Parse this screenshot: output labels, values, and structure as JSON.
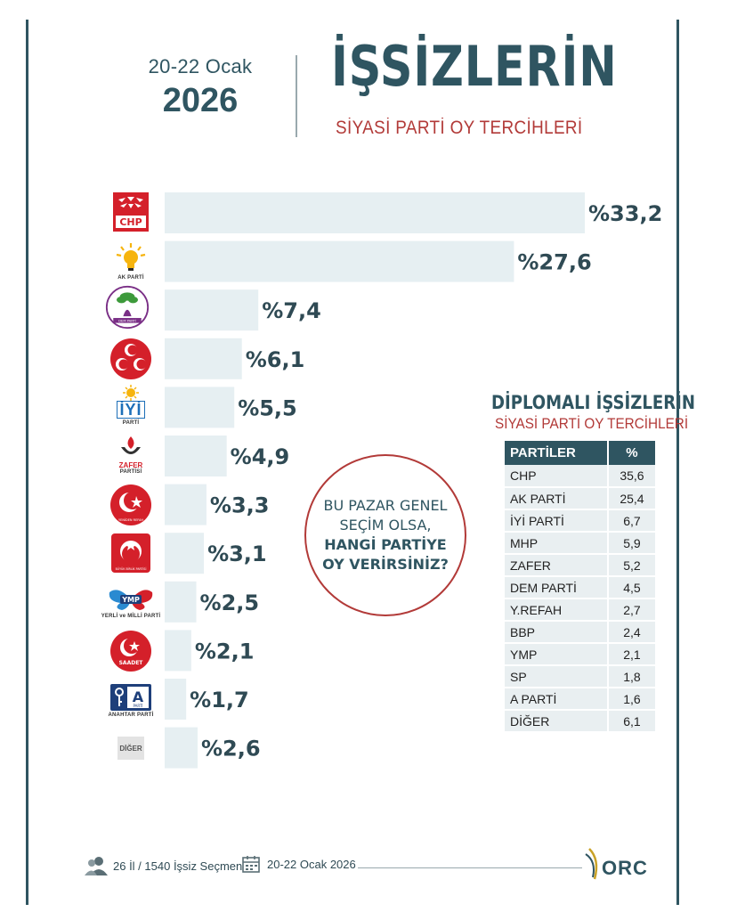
{
  "header": {
    "date_range": "20-22 Ocak",
    "year": "2026",
    "title": "İŞSİZLERİN",
    "subtitle": "SİYASİ PARTİ OY TERCİHLERİ"
  },
  "chart_data": {
    "type": "bar",
    "orientation": "horizontal",
    "title": "İŞSİZLERİN SİYASİ PARTİ OY TERCİHLERİ",
    "value_prefix": "%",
    "categories": [
      "CHP",
      "AK PARTİ",
      "DEM PARTİ",
      "MHP",
      "İYİ PARTİ",
      "ZAFER PARTİSİ",
      "YENİDEN REFAH",
      "BÜYÜK BİRLİK PARTİSİ",
      "YERLİ ve MİLLİ PARTİ",
      "SAADET",
      "ANAHTAR PARTİ",
      "DİĞER"
    ],
    "values": [
      33.2,
      27.6,
      7.4,
      6.1,
      5.5,
      4.9,
      3.3,
      3.1,
      2.5,
      2.1,
      1.7,
      2.6
    ],
    "labels": [
      "%33,2",
      "%27,6",
      "%7,4",
      "%6,1",
      "%5,5",
      "%4,9",
      "%3,3",
      "%3,1",
      "%2,5",
      "%2,1",
      "%1,7",
      "%2,6"
    ],
    "colors": {
      "bar": "#e6eff2",
      "label": "#2f4a54"
    }
  },
  "logos": {
    "chp": "CHP",
    "akp": "AK PARTİ",
    "dem": "DEM PARTİ",
    "iyi": "İYİ",
    "iyi_sub": "PARTİ",
    "zafer": "ZAFER",
    "zafer_sub": "PARTİSİ",
    "yrp": "YENİDEN REFAH",
    "bbp": "BÜYÜK BİRLİK PARTİSİ",
    "ymp": "YMP",
    "ymp_sub": "YERLİ ve MİLLİ PARTİ",
    "saadet": "SAADET",
    "anahtar": "A",
    "anahtar_badge": "PARTİ",
    "anahtar_sub": "ANAHTAR PARTİ",
    "diger": "DİĞER"
  },
  "note": {
    "line1": "BU PAZAR GENEL",
    "line2": "SEÇİM OLSA,",
    "line3": "HANGİ PARTİYE",
    "line4": "OY VERİRSİNİZ?"
  },
  "diploma": {
    "title": "DİPLOMALI İŞSİZLERİN",
    "subtitle": "SİYASİ PARTİ OY TERCİHLERİ",
    "col_party": "PARTİLER",
    "col_pct": "%",
    "rows": [
      {
        "party": "CHP",
        "pct": "35,6"
      },
      {
        "party": "AK PARTİ",
        "pct": "25,4"
      },
      {
        "party": "İYİ PARTİ",
        "pct": "6,7"
      },
      {
        "party": "MHP",
        "pct": "5,9"
      },
      {
        "party": "ZAFER",
        "pct": "5,2"
      },
      {
        "party": "DEM PARTİ",
        "pct": "4,5"
      },
      {
        "party": "Y.REFAH",
        "pct": "2,7"
      },
      {
        "party": "BBP",
        "pct": "2,4"
      },
      {
        "party": "YMP",
        "pct": "2,1"
      },
      {
        "party": "SP",
        "pct": "1,8"
      },
      {
        "party": "A PARTİ",
        "pct": "1,6"
      },
      {
        "party": "DİĞER",
        "pct": "6,1"
      }
    ]
  },
  "footer": {
    "sample": "26 İl / 1540 İşsiz Seçmen",
    "date": "20-22 Ocak 2026",
    "brand": "ORC"
  }
}
